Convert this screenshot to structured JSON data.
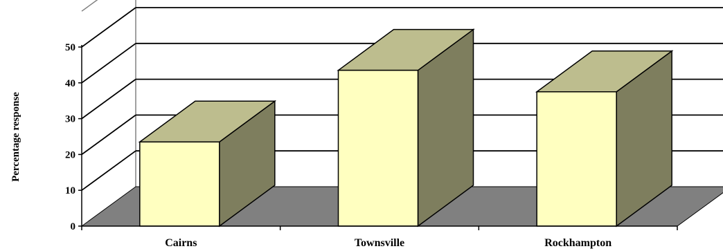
{
  "chart_data": {
    "type": "bar",
    "title": "",
    "xlabel": "",
    "ylabel": "Percentage response",
    "categories": [
      "Cairns",
      "Townsville",
      "Rockhampton"
    ],
    "values": [
      23.5,
      43.5,
      37.5
    ],
    "ylim": [
      0,
      60
    ],
    "yticks": [
      0,
      10,
      20,
      30,
      40,
      50
    ],
    "grid": true,
    "legend": "none",
    "style": "3d",
    "colors": {
      "bar_front": "#FFFFC0",
      "bar_top": "#BDBD8E",
      "bar_side": "#7E7E5E",
      "floor": "#808080",
      "gridlines": "#000000"
    }
  }
}
